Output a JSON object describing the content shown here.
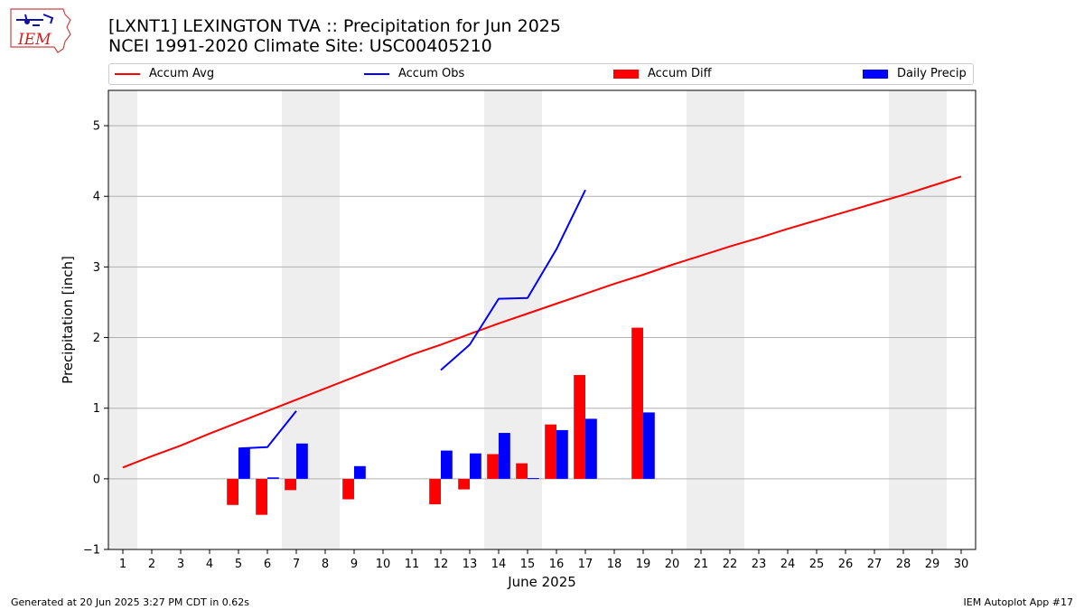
{
  "header": {
    "title_line1": "[LXNT1] LEXINGTON TVA :: Precipitation for Jun 2025",
    "title_line2": "NCEI 1991-2020 Climate Site: USC00405210",
    "logo_text": "IEM"
  },
  "footer": {
    "generated": "Generated at 20 Jun 2025 3:27 PM CDT in 0.62s",
    "app": "IEM Autoplot App #17"
  },
  "colors": {
    "avg": "#ff0000",
    "obs": "#0000ff",
    "diff": "#ff0000",
    "daily": "#0000ff",
    "weekend_shade": "#eeeeee",
    "grid": "#b0b0b0"
  },
  "chart_data": {
    "type": "bar",
    "xlabel": "June 2025",
    "ylabel": "Precipitation [inch]",
    "xlim": [
      0.5,
      30.5
    ],
    "ylim": [
      -1,
      5.5
    ],
    "yticks": [
      -1,
      0,
      1,
      2,
      3,
      4,
      5
    ],
    "x": [
      1,
      2,
      3,
      4,
      5,
      6,
      7,
      8,
      9,
      10,
      11,
      12,
      13,
      14,
      15,
      16,
      17,
      18,
      19,
      20,
      21,
      22,
      23,
      24,
      25,
      26,
      27,
      28,
      29,
      30
    ],
    "grid": "horizontal",
    "legend_position": "top",
    "shaded_days": [
      1,
      7,
      8,
      14,
      15,
      21,
      22,
      28,
      29
    ],
    "series": [
      {
        "name": "Accum Avg",
        "kind": "line",
        "values": [
          0.16,
          0.32,
          0.47,
          0.64,
          0.8,
          0.96,
          1.12,
          1.28,
          1.44,
          1.6,
          1.76,
          1.9,
          2.05,
          2.2,
          2.34,
          2.48,
          2.62,
          2.76,
          2.89,
          3.03,
          3.16,
          3.29,
          3.41,
          3.54,
          3.66,
          3.78,
          3.9,
          4.02,
          4.15,
          4.28
        ]
      },
      {
        "name": "Accum Obs",
        "kind": "line",
        "values": [
          null,
          null,
          null,
          null,
          0.43,
          0.45,
          0.96,
          null,
          null,
          null,
          null,
          1.54,
          1.9,
          2.55,
          2.56,
          3.25,
          4.09,
          null,
          null,
          null,
          null,
          null,
          null,
          null,
          null,
          null,
          null,
          null,
          null,
          null
        ]
      },
      {
        "name": "Accum Diff",
        "kind": "bar",
        "values": [
          null,
          null,
          null,
          null,
          -0.37,
          -0.51,
          -0.16,
          null,
          -0.29,
          null,
          null,
          -0.36,
          -0.15,
          0.35,
          0.22,
          0.77,
          1.47,
          null,
          2.14,
          null,
          null,
          null,
          null,
          null,
          null,
          null,
          null,
          null,
          null,
          null
        ]
      },
      {
        "name": "Daily Precip",
        "kind": "bar",
        "values": [
          null,
          null,
          null,
          null,
          0.43,
          0.02,
          0.5,
          null,
          0.18,
          null,
          null,
          0.4,
          0.36,
          0.65,
          0.01,
          0.69,
          0.85,
          null,
          0.94,
          null,
          null,
          null,
          null,
          null,
          null,
          null,
          null,
          null,
          null,
          null
        ]
      }
    ]
  }
}
